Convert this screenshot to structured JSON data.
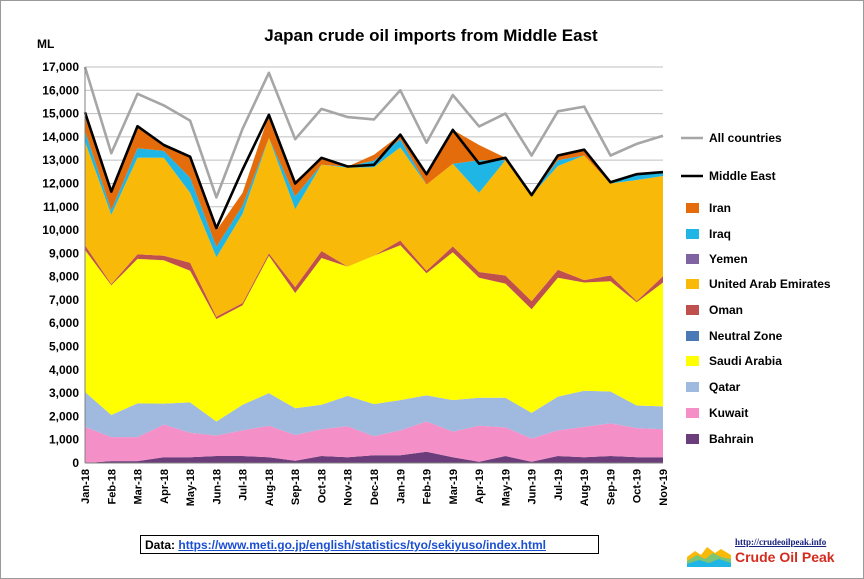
{
  "chart_data": {
    "type": "area",
    "title": "Japan crude oil imports from Middle East",
    "ylabel": "ML",
    "ylim": [
      0,
      17000
    ],
    "yticks": [
      "0",
      "1,000",
      "2,000",
      "3,000",
      "4,000",
      "5,000",
      "6,000",
      "7,000",
      "8,000",
      "9,000",
      "10,000",
      "11,000",
      "12,000",
      "13,000",
      "14,000",
      "15,000",
      "16,000",
      "17,000"
    ],
    "grid": true,
    "legend_position": "right",
    "categories": [
      "Jan-18",
      "Feb-18",
      "Mar-18",
      "Apr-18",
      "May-18",
      "Jun-18",
      "Jul-18",
      "Aug-18",
      "Sep-18",
      "Oct-18",
      "Nov-18",
      "Dec-18",
      "Jan-19",
      "Feb-19",
      "Mar-19",
      "Apr-19",
      "May-19",
      "Jun-19",
      "Jul-19",
      "Aug-19",
      "Sep-19",
      "Oct-19",
      "Nov-19"
    ],
    "stacked_series": [
      {
        "name": "Bahrain",
        "color": "#6b3d7a",
        "values": [
          0,
          80,
          80,
          250,
          250,
          300,
          300,
          250,
          100,
          300,
          250,
          330,
          330,
          480,
          250,
          50,
          300,
          50,
          300,
          250,
          300,
          250,
          250
        ]
      },
      {
        "name": "Kuwait",
        "color": "#f48fc7",
        "values": [
          1550,
          1030,
          1030,
          1400,
          1050,
          880,
          1100,
          1350,
          1100,
          1150,
          1330,
          820,
          1070,
          1300,
          1100,
          1550,
          1230,
          1000,
          1100,
          1300,
          1400,
          1250,
          1200
        ]
      },
      {
        "name": "Qatar",
        "color": "#9fb9df",
        "values": [
          1500,
          950,
          1450,
          900,
          1300,
          600,
          1100,
          1400,
          1150,
          1050,
          1300,
          1380,
          1300,
          1120,
          1350,
          1200,
          1270,
          1100,
          1450,
          1550,
          1370,
          970,
          980
        ]
      },
      {
        "name": "Saudi Arabia",
        "color": "#ffff00",
        "values": [
          6100,
          5570,
          6200,
          6150,
          5650,
          4400,
          4270,
          5900,
          4950,
          6300,
          5550,
          6370,
          6650,
          5250,
          6350,
          5150,
          4900,
          4450,
          5100,
          4650,
          4730,
          4430,
          5320
        ]
      },
      {
        "name": "Neutral Zone",
        "color": "#4a7ab5",
        "values": [
          0,
          0,
          0,
          0,
          0,
          0,
          0,
          0,
          0,
          0,
          0,
          0,
          0,
          0,
          0,
          0,
          0,
          0,
          0,
          0,
          0,
          0,
          0
        ]
      },
      {
        "name": "Oman",
        "color": "#c0504d",
        "values": [
          200,
          50,
          200,
          200,
          350,
          100,
          100,
          100,
          250,
          300,
          0,
          0,
          200,
          100,
          250,
          250,
          350,
          350,
          350,
          100,
          250,
          50,
          270
        ]
      },
      {
        "name": "United Arab Emirates",
        "color": "#f8b908",
        "values": [
          4450,
          2980,
          4150,
          4200,
          3000,
          2550,
          3830,
          4950,
          3350,
          3700,
          4250,
          3800,
          4000,
          3700,
          3550,
          3400,
          4950,
          4550,
          4450,
          5350,
          3950,
          5200,
          4300
        ]
      },
      {
        "name": "Yemen",
        "color": "#8064a2",
        "values": [
          0,
          0,
          0,
          0,
          0,
          0,
          0,
          0,
          0,
          0,
          0,
          0,
          0,
          0,
          0,
          0,
          0,
          0,
          0,
          0,
          0,
          0,
          0
        ]
      },
      {
        "name": "Iraq",
        "color": "#1fb6e6",
        "values": [
          450,
          190,
          400,
          300,
          650,
          450,
          350,
          0,
          550,
          0,
          50,
          280,
          350,
          0,
          0,
          1400,
          0,
          0,
          250,
          0,
          0,
          250,
          170
        ]
      },
      {
        "name": "Iran",
        "color": "#e46c0a",
        "values": [
          800,
          800,
          950,
          250,
          900,
          700,
          550,
          1000,
          650,
          300,
          0,
          250,
          200,
          500,
          1450,
          650,
          100,
          0,
          200,
          250,
          50,
          0,
          0
        ]
      }
    ],
    "line_series": [
      {
        "name": "Middle East",
        "color": "#000000",
        "values": [
          15050,
          11650,
          14460,
          13650,
          13150,
          10080,
          12600,
          14950,
          12000,
          13100,
          12730,
          12800,
          14100,
          12400,
          14300,
          12850,
          13100,
          11500,
          13200,
          13450,
          12050,
          12400,
          12490
        ]
      },
      {
        "name": "All countries",
        "color": "#a6a6a6",
        "values": [
          17000,
          13300,
          15850,
          15350,
          14700,
          11400,
          14350,
          16750,
          13900,
          15200,
          14850,
          14750,
          16000,
          13750,
          15800,
          14450,
          15000,
          13200,
          15100,
          15300,
          13200,
          13700,
          14050
        ]
      }
    ],
    "legend": [
      "All countries",
      "Middle East",
      "Iran",
      "Iraq",
      "Yemen",
      "United Arab Emirates",
      "Oman",
      "Neutral Zone",
      "Saudi Arabia",
      "Qatar",
      "Kuwait",
      "Bahrain"
    ]
  },
  "source": {
    "label": "Data:",
    "url": "https://www.meti.go.jp/english/statistics/tyo/sekiyuso/index.html"
  },
  "logo": {
    "url": "http://crudeoilpeak.info",
    "name": "Crude Oil Peak"
  }
}
